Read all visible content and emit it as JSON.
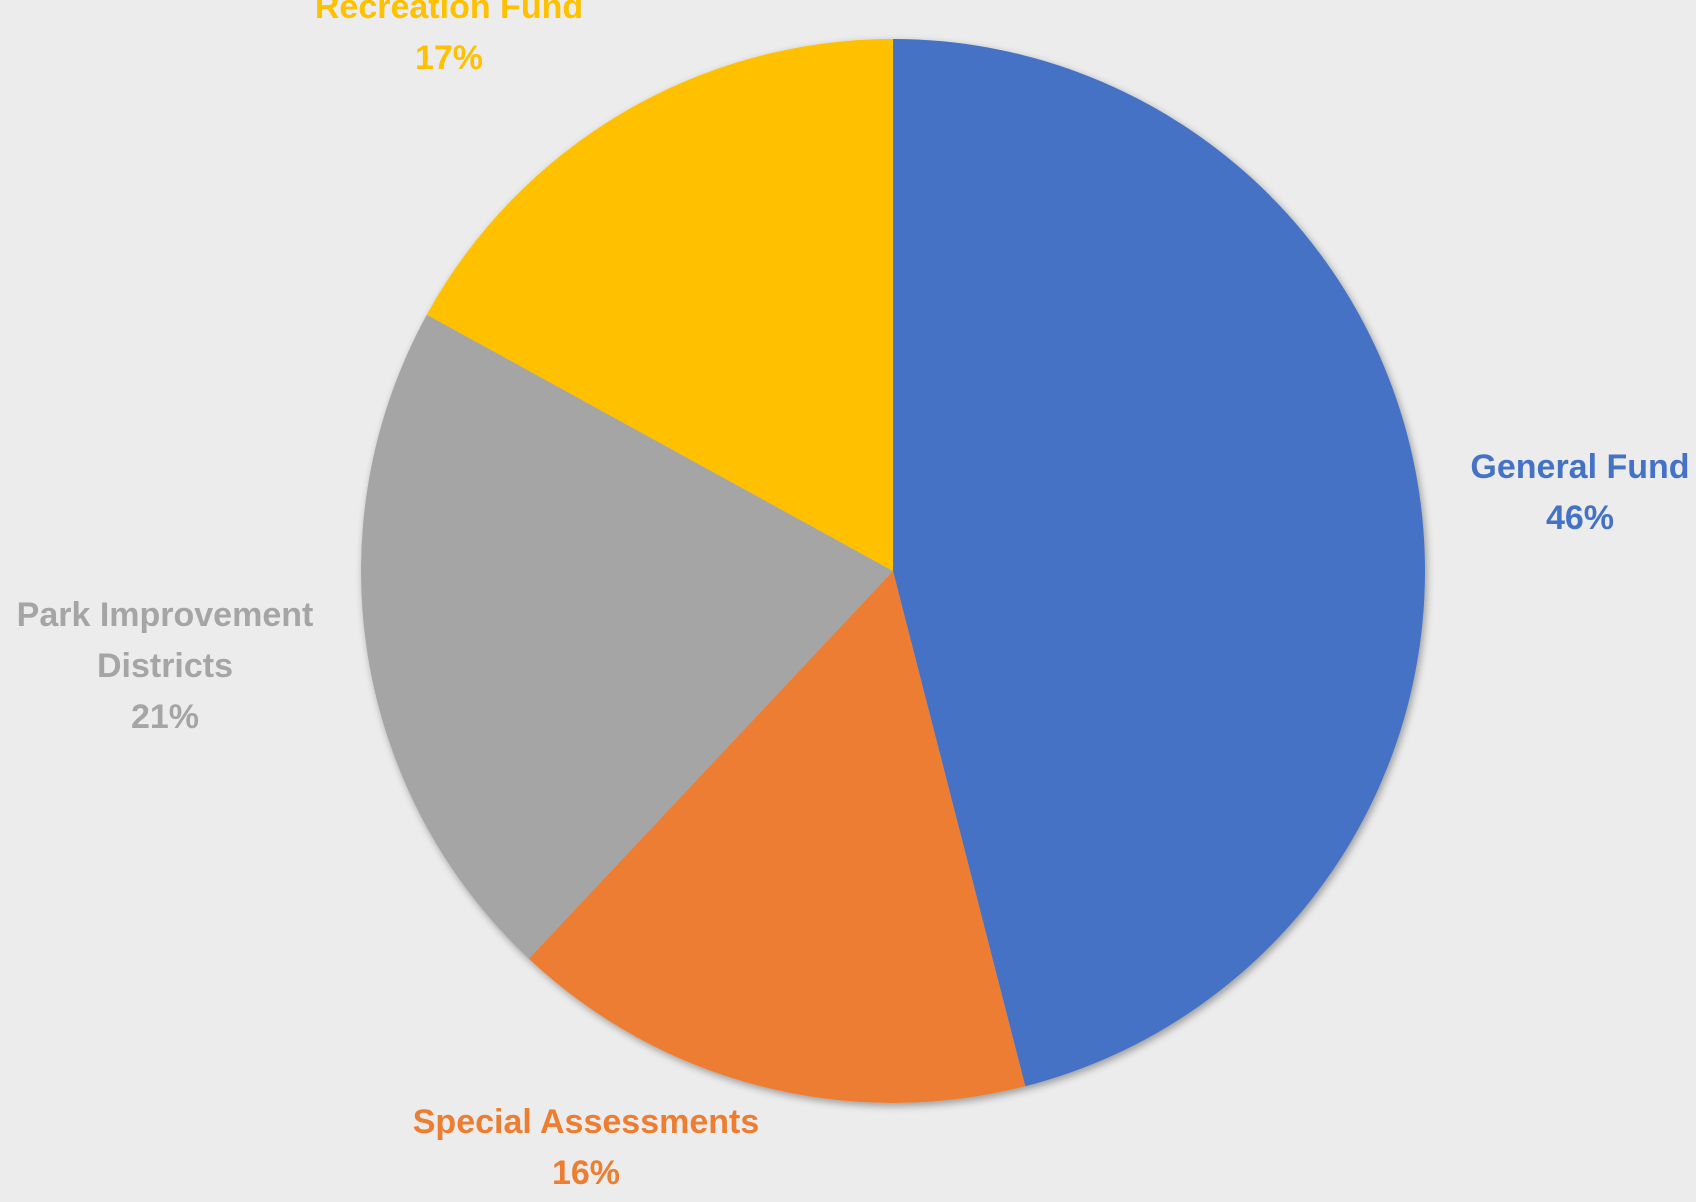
{
  "chart_data": {
    "type": "pie",
    "title": "",
    "legend": "none",
    "slices": [
      {
        "label_lines": [
          "General Fund"
        ],
        "value": 46,
        "value_label": "46%",
        "color": "#4472c4"
      },
      {
        "label_lines": [
          "Special Assessments"
        ],
        "value": 16,
        "value_label": "16%",
        "color": "#ed7d31"
      },
      {
        "label_lines": [
          "Park Improvement",
          "Districts"
        ],
        "value": 21,
        "value_label": "21%",
        "color": "#a5a5a5"
      },
      {
        "label_lines": [
          "Recreation Fund"
        ],
        "value": 17,
        "value_label": "17%",
        "color": "#ffc000"
      }
    ]
  }
}
